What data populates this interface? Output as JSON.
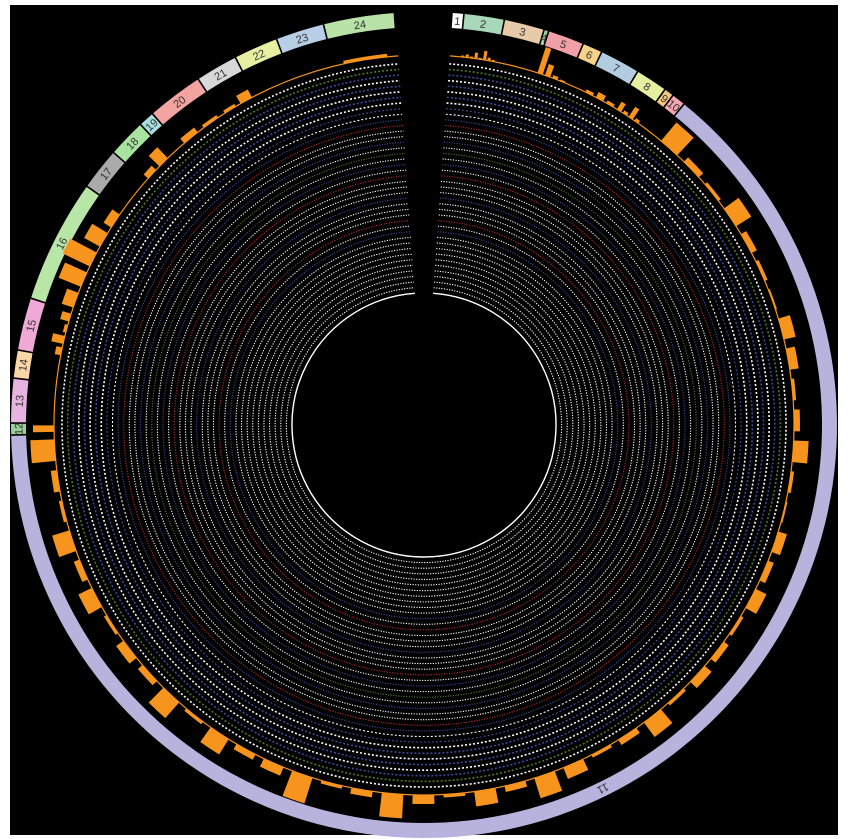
{
  "colors": {
    "background": "#000000",
    "ring_white": "#ffffff",
    "ring_blue": "#3a4a9a",
    "ring_red": "#b02a2a",
    "ring_green": "#4a7a2a",
    "histogram": "#f7941d",
    "orange_line": "#f7941d"
  },
  "chromosomes": [
    {
      "label": "1",
      "size": 1.0,
      "color": "#ffffff"
    },
    {
      "label": "2",
      "size": 3.8,
      "color": "#a8d8b9"
    },
    {
      "label": "3",
      "size": 3.8,
      "color": "#e8c9a8"
    },
    {
      "label": "4",
      "size": 0.3,
      "color": "#9fd39f"
    },
    {
      "label": "5",
      "size": 3.4,
      "color": "#f2a0a8"
    },
    {
      "label": "6",
      "size": 1.8,
      "color": "#f8d18a"
    },
    {
      "label": "7",
      "size": 3.8,
      "color": "#b3cde0"
    },
    {
      "label": "8",
      "size": 3.0,
      "color": "#e6eea0"
    },
    {
      "label": "9",
      "size": 0.8,
      "color": "#f5c77e"
    },
    {
      "label": "10",
      "size": 1.2,
      "color": "#f4a6b3"
    },
    {
      "label": "11",
      "size": 160.0,
      "color": "#b7b3dc"
    },
    {
      "label": "12",
      "size": 1.0,
      "color": "#99d199"
    },
    {
      "label": "13",
      "size": 4.2,
      "color": "#e7b4e1"
    },
    {
      "label": "14",
      "size": 2.6,
      "color": "#fbd6a6"
    },
    {
      "label": "15",
      "size": 5.0,
      "color": "#f0a9d6"
    },
    {
      "label": "16",
      "size": 12.0,
      "color": "#b8e6a6"
    },
    {
      "label": "17",
      "size": 4.0,
      "color": "#aaaaaa"
    },
    {
      "label": "18",
      "size": 3.6,
      "color": "#a8e3a0"
    },
    {
      "label": "19",
      "size": 1.4,
      "color": "#a8dfe3"
    },
    {
      "label": "20",
      "size": 5.4,
      "color": "#f3a3a0"
    },
    {
      "label": "21",
      "size": 4.0,
      "color": "#d8d8d8"
    },
    {
      "label": "22",
      "size": 4.2,
      "color": "#e6f0a0"
    },
    {
      "label": "23",
      "size": 4.6,
      "color": "#b8cde6"
    },
    {
      "label": "24",
      "size": 6.8,
      "color": "#b9e2a6"
    }
  ],
  "histogram_bins": [
    {
      "chrom": "2",
      "values": [
        0.05,
        0.1,
        0.05,
        0.2,
        0.05,
        0.3,
        0.1,
        0.05
      ]
    },
    {
      "chrom": "5",
      "values": [
        0.9,
        0.4,
        0.1,
        0.05
      ]
    },
    {
      "chrom": "7",
      "values": [
        0.1,
        0.2,
        0.1
      ]
    },
    {
      "chrom": "8",
      "values": [
        0.3,
        0.1,
        0.4,
        0.1
      ]
    },
    {
      "chrom": "11",
      "values": [
        0.8,
        0.2,
        0.1,
        0.6,
        0.2,
        0.1,
        0.05,
        0.4,
        0.3,
        0.1,
        0.2,
        0.5,
        0.1,
        0.05,
        0.3,
        0.2,
        0.4,
        0.1,
        0.2,
        0.3,
        0.1,
        0.6,
        0.2,
        0.1,
        0.4,
        0.7,
        0.2,
        0.5,
        0.1,
        0.3,
        0.8,
        0.2,
        0.1,
        0.9,
        0.3,
        0.2,
        0.6,
        0.1,
        0.7,
        0.2,
        0.3,
        0.1,
        0.5,
        0.2,
        0.6,
        0.1,
        0.2,
        0.8
      ]
    },
    {
      "chrom": "12",
      "values": [
        0.7
      ]
    },
    {
      "chrom": "15",
      "values": [
        0.2,
        0.4,
        0.1,
        0.3
      ]
    },
    {
      "chrom": "16",
      "values": [
        0.4,
        0.8,
        1.0,
        0.6,
        0.3
      ]
    },
    {
      "chrom": "18",
      "values": [
        0.2,
        0.5
      ]
    },
    {
      "chrom": "20",
      "values": [
        0.2,
        0.1
      ]
    },
    {
      "chrom": "21",
      "values": [
        0.1,
        0.3
      ]
    },
    {
      "chrom": "24",
      "values": [
        0.1
      ]
    }
  ],
  "inner_rings": {
    "count": 42,
    "blue_rings": [
      2,
      4,
      6,
      8,
      10,
      14,
      18,
      24,
      30
    ],
    "red_rings": [
      11,
      20,
      28
    ]
  }
}
